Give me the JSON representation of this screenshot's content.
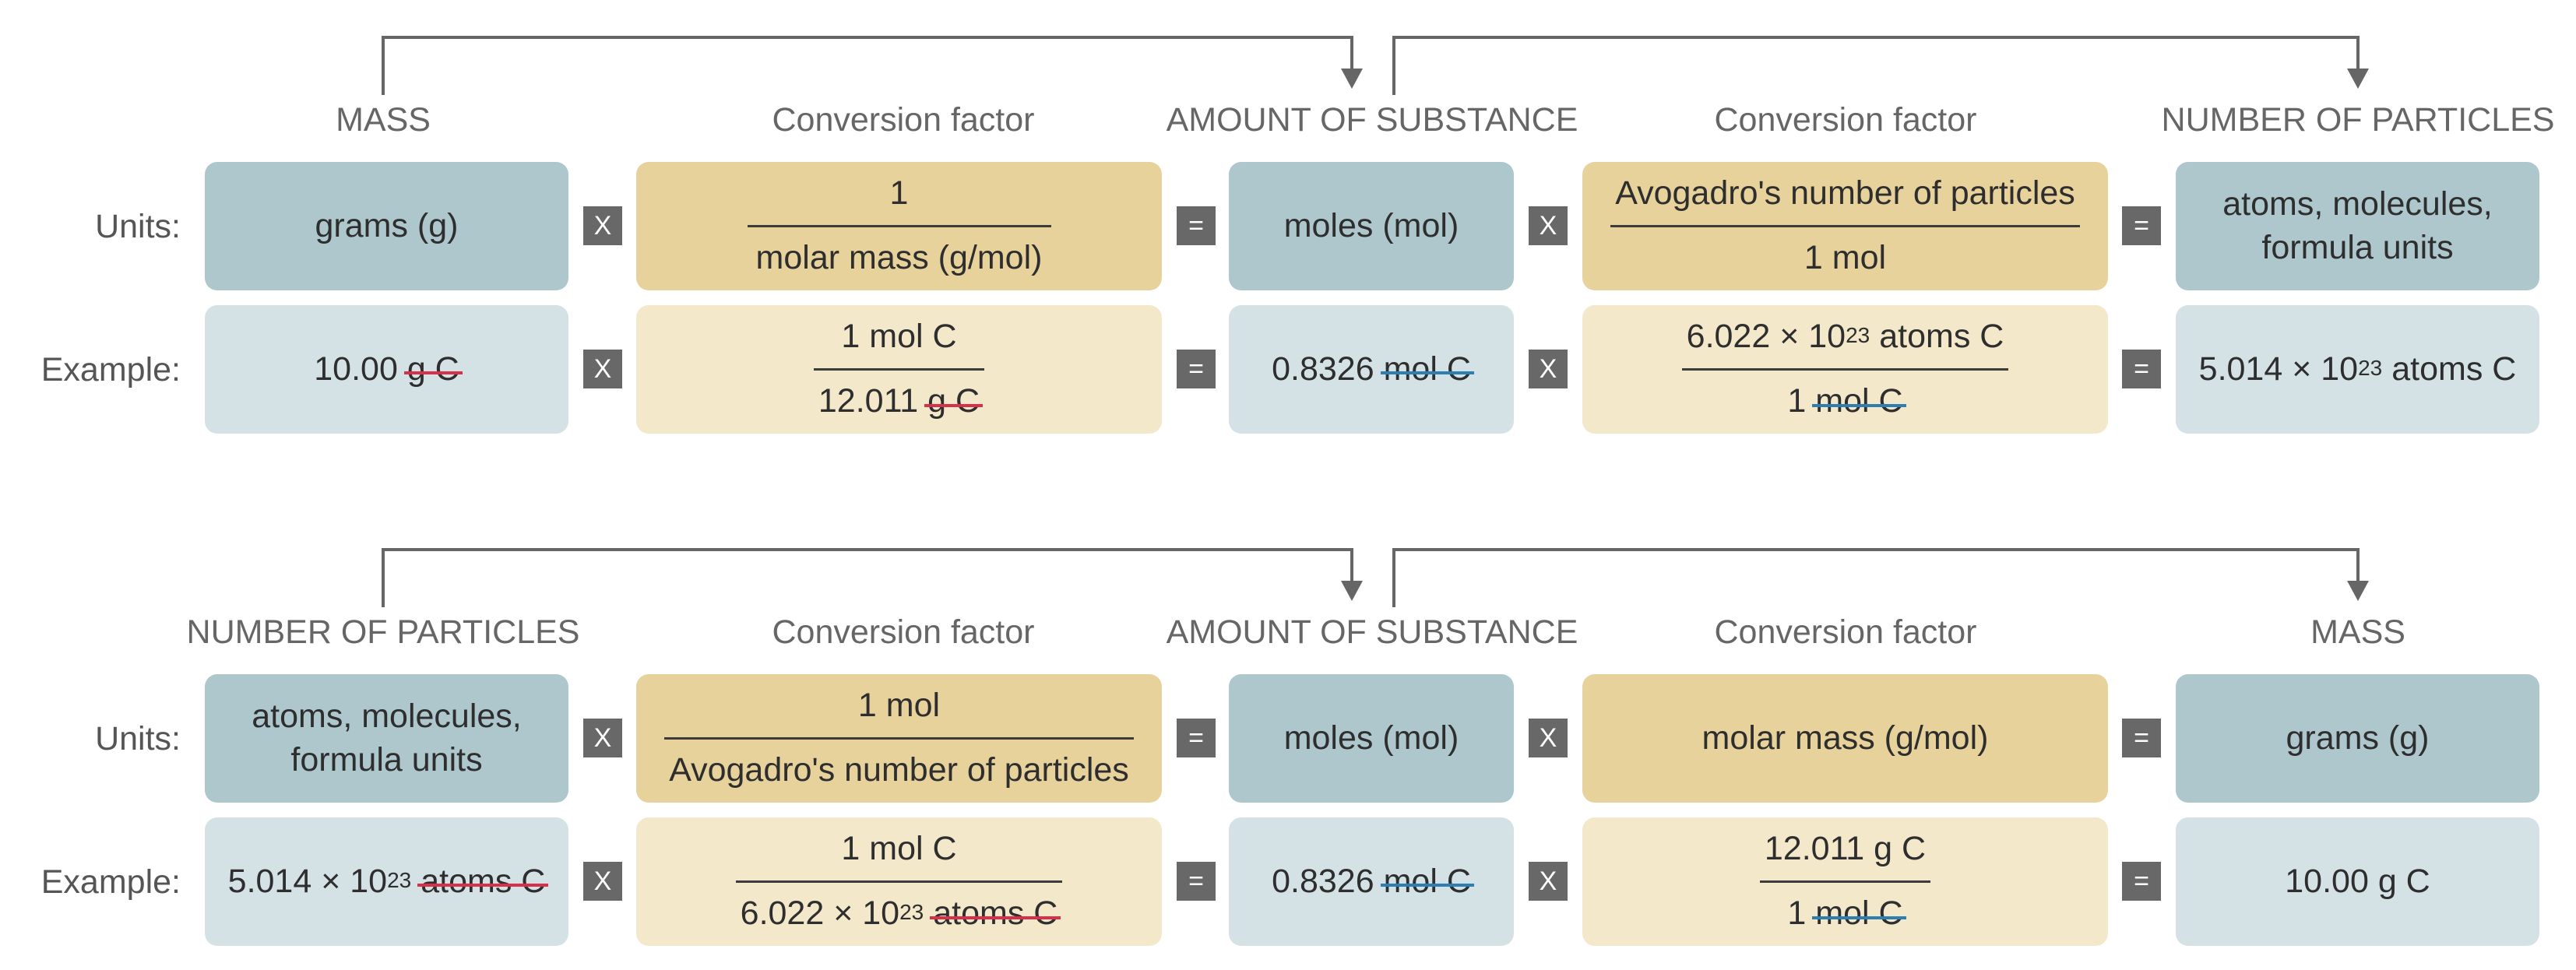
{
  "upper": {
    "headers": {
      "mass": "MASS",
      "cf1": "Conversion factor",
      "amount": "AMOUNT OF SUBSTANCE",
      "cf2": "Conversion factor",
      "particles": "NUMBER OF PARTICLES"
    },
    "row_labels": {
      "units": "Units:",
      "example": "Example:"
    },
    "units": {
      "mass": "grams (g)",
      "cf1_num": "1",
      "cf1_den": "molar mass (g/mol)",
      "amount": "moles (mol)",
      "cf2_num": "Avogadro's number of particles",
      "cf2_den": "1 mol",
      "particles_line1": "atoms, molecules,",
      "particles_line2": "formula units"
    },
    "example": {
      "mass_value": "10.00",
      "mass_unit": "g C",
      "cf1_num": "1 mol C",
      "cf1_den_value": "12.011",
      "cf1_den_unit": "g C",
      "amount_value": "0.8326",
      "amount_unit": "mol C",
      "cf2_num_mantissa": "6.022 × 10",
      "cf2_num_exp": "23",
      "cf2_num_unit": "atoms C",
      "cf2_den_value": "1",
      "cf2_den_unit": "mol C",
      "result_mantissa": "5.014 × 10",
      "result_exp": "23",
      "result_unit": "atoms C"
    }
  },
  "lower": {
    "headers": {
      "particles": "NUMBER OF PARTICLES",
      "cf1": "Conversion factor",
      "amount": "AMOUNT OF SUBSTANCE",
      "cf2": "Conversion factor",
      "mass": "MASS"
    },
    "row_labels": {
      "units": "Units:",
      "example": "Example:"
    },
    "units": {
      "particles_line1": "atoms, molecules,",
      "particles_line2": "formula units",
      "cf1_num": "1 mol",
      "cf1_den": "Avogadro's number of particles",
      "amount": "moles (mol)",
      "cf2": "molar mass (g/mol)",
      "mass": "grams (g)"
    },
    "example": {
      "particles_mantissa": "5.014 × 10",
      "particles_exp": "23",
      "particles_unit": "atoms C",
      "cf1_num": "1 mol C",
      "cf1_den_mantissa": "6.022 × 10",
      "cf1_den_exp": "23",
      "cf1_den_unit": "atoms C",
      "amount_value": "0.8326",
      "amount_unit": "mol C",
      "cf2_num": "12.011 g C",
      "cf2_den_value": "1",
      "cf2_den_unit": "mol C",
      "mass": "10.00 g C"
    }
  },
  "operators": {
    "multiply": "X",
    "equals": "="
  },
  "colors": {
    "box_blue_dark": "#adc7cd",
    "box_blue_light": "#d4e2e6",
    "box_gold_dark": "#e8d29c",
    "box_gold_light": "#f4e8cb",
    "cancel_red": "#d6304a",
    "cancel_blue": "#2c7fb0",
    "operator_bg": "#686868"
  }
}
